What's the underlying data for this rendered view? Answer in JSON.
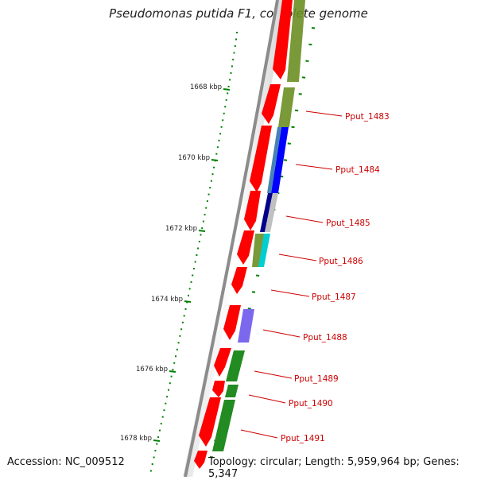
{
  "title": "Pseudomonas putida F1, complete genome",
  "accession": "Accession: NC_009512",
  "topology": "Topology: circular; Length: 5,959,964 bp; Genes: 5,347",
  "scale_labels": [
    "1668 kbp",
    "1670 kbp",
    "1672 kbp",
    "1674 kbp",
    "1676 kbp",
    "1678 kbp"
  ],
  "gene_labels": [
    "Pput_1483",
    "Pput_1484",
    "Pput_1485",
    "Pput_1486",
    "Pput_1487",
    "Pput_1488",
    "Pput_1489",
    "Pput_1490",
    "Pput_1491"
  ],
  "colors": {
    "cds": "#ff0000",
    "backbone": "#8c8c8c",
    "label": "#cc0000",
    "tick": "#008000",
    "cog_olive": "#6b8e23",
    "cog_blue": "#0000ff",
    "cog_steel": "#4682b4",
    "cog_navy": "#00008b",
    "cog_silver": "#c0c0c0",
    "cog_cyan": "#00ced1",
    "cog_slate": "#7b68ee",
    "cog_green": "#228b22"
  }
}
